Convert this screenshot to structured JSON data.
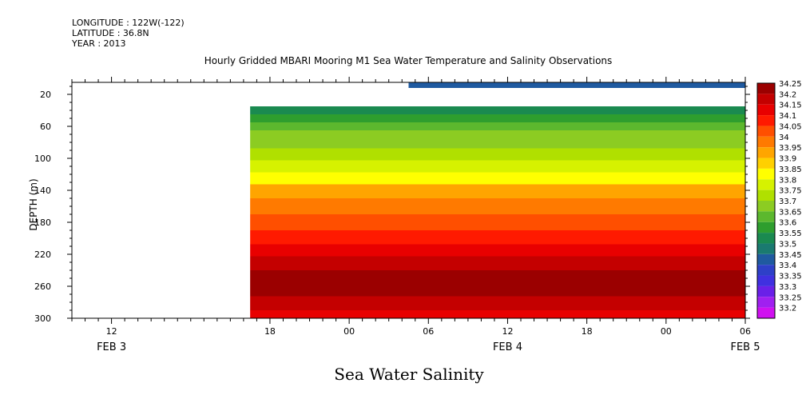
{
  "meta": {
    "longitude": "LONGITUDE : 122W(-122)",
    "latitude": "LATITUDE : 36.8N",
    "year": "YEAR : 2013"
  },
  "chart_data": {
    "type": "heatmap",
    "title": "Hourly Gridded MBARI Mooring M1 Sea Water Temperature and Salinity Observations",
    "subtitle": "Sea Water Salinity",
    "ylabel": "DEPTH (m)",
    "xlabel": "",
    "x_range_hours": [
      -12,
      39
    ],
    "ylim": [
      300,
      5
    ],
    "y_ticks": [
      20,
      60,
      100,
      140,
      180,
      220,
      260,
      300
    ],
    "x_tick_labels": [
      {
        "h": -9,
        "label": "12"
      },
      {
        "h": 3,
        "label": "18"
      },
      {
        "h": 9,
        "label": "00"
      },
      {
        "h": 15,
        "label": "06"
      },
      {
        "h": 21,
        "label": "12"
      },
      {
        "h": 27,
        "label": "18"
      },
      {
        "h": 33,
        "label": "00"
      },
      {
        "h": 39,
        "label": "06"
      },
      {
        "h": 45,
        "label": "12"
      }
    ],
    "day_labels": [
      {
        "h": -9,
        "label": "FEB  3"
      },
      {
        "h": 21,
        "label": "FEB  4"
      },
      {
        "h": 39,
        "label": "FEB  5"
      }
    ],
    "data_start_hour": 1.5,
    "surface_bar": {
      "start_hour": 13.5,
      "depth_top": 5,
      "depth_bottom": 12,
      "value": 33.4
    },
    "legend_levels": [
      34.25,
      34.2,
      34.15,
      34.1,
      34.05,
      34,
      33.95,
      33.9,
      33.85,
      33.8,
      33.75,
      33.7,
      33.65,
      33.6,
      33.55,
      33.5,
      33.45,
      33.4,
      33.35,
      33.3,
      33.25,
      33.2
    ],
    "legend_labels": [
      "34.25",
      "34.2",
      "34.15",
      "34.1",
      "34.05",
      "34",
      "33.95",
      "33.9",
      "33.85",
      "33.8",
      "33.75",
      "33.7",
      "33.65",
      "33.6",
      "33.55",
      "33.5",
      "33.45",
      "33.4",
      "33.35",
      "33.3",
      "33.25",
      "33.2"
    ],
    "colors": [
      "#9b0000",
      "#c40000",
      "#e80000",
      "#ff1a00",
      "#ff4f00",
      "#ff7a00",
      "#ffa500",
      "#ffd000",
      "#ffff00",
      "#d6f200",
      "#b0e000",
      "#8ccc22",
      "#5cb82e",
      "#2e9e2e",
      "#1a8a50",
      "#1a7a70",
      "#1f5aa0",
      "#2e40c8",
      "#4030e0",
      "#6a20e8",
      "#a020f0",
      "#d010f0"
    ],
    "depth_profile": [
      {
        "depth": 40,
        "value": 33.52
      },
      {
        "depth": 50,
        "value": 33.58
      },
      {
        "depth": 60,
        "value": 33.62
      },
      {
        "depth": 70,
        "value": 33.67
      },
      {
        "depth": 80,
        "value": 33.69
      },
      {
        "depth": 95,
        "value": 33.72
      },
      {
        "depth": 110,
        "value": 33.77
      },
      {
        "depth": 125,
        "value": 33.82
      },
      {
        "depth": 140,
        "value": 33.9
      },
      {
        "depth": 160,
        "value": 33.97
      },
      {
        "depth": 180,
        "value": 34.02
      },
      {
        "depth": 200,
        "value": 34.07
      },
      {
        "depth": 215,
        "value": 34.12
      },
      {
        "depth": 230,
        "value": 34.16
      },
      {
        "depth": 250,
        "value": 34.22
      },
      {
        "depth": 265,
        "value": 34.21
      },
      {
        "depth": 280,
        "value": 34.17
      },
      {
        "depth": 300,
        "value": 34.12
      }
    ]
  }
}
